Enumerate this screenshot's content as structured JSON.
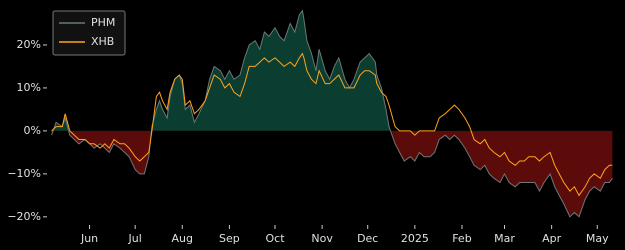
{
  "chart_data": {
    "type": "line",
    "x": [
      -25,
      -22,
      -18,
      -16,
      -13,
      -10,
      -7,
      -3,
      0,
      3,
      7,
      10,
      13,
      16,
      20,
      23,
      26,
      30,
      33,
      36,
      39,
      41,
      44,
      46,
      48,
      51,
      53,
      56,
      59,
      61,
      63,
      66,
      69,
      72,
      76,
      79,
      82,
      86,
      89,
      92,
      95,
      99,
      102,
      105,
      109,
      112,
      115,
      118,
      122,
      125,
      128,
      132,
      135,
      138,
      140,
      141,
      143,
      146,
      149,
      151,
      155,
      158,
      161,
      164,
      168,
      171,
      174,
      178,
      181,
      184,
      188,
      189,
      192,
      195,
      197,
      201,
      204,
      207,
      211,
      214,
      217,
      220,
      224,
      227,
      230,
      234,
      237,
      240,
      243,
      247,
      250,
      253,
      257,
      260,
      263,
      266,
      270,
      273,
      276,
      280,
      283,
      286,
      289,
      293,
      296,
      299,
      303,
      306,
      309,
      312,
      316,
      319,
      322,
      326,
      329,
      332,
      336,
      339,
      342,
      344
    ],
    "series": [
      {
        "name": "PHM",
        "color": "#6b7878",
        "fill_positive": "#0b3d31",
        "fill_negative": "#5c0b0b",
        "values": [
          -1,
          2,
          1,
          3,
          -1,
          -2,
          -3,
          -2,
          -3,
          -4,
          -3,
          -4,
          -5,
          -3,
          -4,
          -5,
          -6,
          -9,
          -10,
          -10,
          -6,
          1,
          5,
          7,
          5,
          3,
          8,
          12,
          13,
          11,
          5,
          6,
          2,
          4,
          7,
          12,
          15,
          14,
          12,
          14,
          12,
          13,
          17,
          20,
          21,
          19,
          23,
          22,
          24,
          22,
          21,
          25,
          23,
          27,
          28,
          26,
          21,
          18,
          14,
          19,
          14,
          12,
          15,
          17,
          12,
          10,
          12,
          16,
          17,
          18,
          16,
          13,
          10,
          5,
          1,
          -3,
          -5,
          -7,
          -6,
          -7,
          -5,
          -6,
          -6,
          -5,
          -2,
          -1,
          -2,
          -1,
          -2,
          -4,
          -6,
          -8,
          -9,
          -8,
          -10,
          -11,
          -12,
          -10,
          -12,
          -13,
          -12,
          -12,
          -12,
          -12,
          -14,
          -12,
          -10,
          -13,
          -15,
          -17,
          -20,
          -19,
          -20,
          -16,
          -14,
          -13,
          -14,
          -12,
          -12,
          -11
        ]
      },
      {
        "name": "XHB",
        "color": "#ffa41c",
        "values": [
          0,
          1,
          1,
          4,
          0,
          -1,
          -2,
          -2,
          -3,
          -3,
          -4,
          -3,
          -4,
          -2,
          -3,
          -3,
          -4,
          -6,
          -7,
          -6,
          -5,
          0,
          8,
          9,
          7,
          5,
          9,
          12,
          13,
          12,
          6,
          7,
          4,
          5,
          7,
          10,
          13,
          12,
          10,
          11,
          9,
          8,
          11,
          15,
          15,
          16,
          17,
          16,
          17,
          16,
          15,
          16,
          15,
          17,
          18,
          17,
          14,
          12,
          11,
          14,
          11,
          11,
          12,
          13,
          10,
          10,
          10,
          13,
          14,
          14,
          13,
          11,
          9,
          8,
          6,
          1,
          0,
          0,
          0,
          -1,
          0,
          0,
          0,
          0,
          3,
          4,
          5,
          6,
          5,
          3,
          1,
          -2,
          -3,
          -2,
          -4,
          -5,
          -6,
          -5,
          -7,
          -8,
          -7,
          -7,
          -6,
          -6,
          -7,
          -6,
          -5,
          -8,
          -10,
          -12,
          -14,
          -13,
          -15,
          -13,
          -11,
          -10,
          -11,
          -9,
          -8,
          -8
        ]
      }
    ],
    "xlim": [
      -28,
      347
    ],
    "xticks": [
      {
        "value": 0,
        "label": "Jun"
      },
      {
        "value": 30,
        "label": "Jul"
      },
      {
        "value": 61,
        "label": "Aug"
      },
      {
        "value": 92,
        "label": "Sep"
      },
      {
        "value": 122,
        "label": "Oct"
      },
      {
        "value": 153,
        "label": "Nov"
      },
      {
        "value": 183,
        "label": "Dec"
      },
      {
        "value": 214,
        "label": "2025"
      },
      {
        "value": 245,
        "label": "Feb"
      },
      {
        "value": 273,
        "label": "Mar"
      },
      {
        "value": 304,
        "label": "Apr"
      },
      {
        "value": 334,
        "label": "May"
      }
    ],
    "ylim": [
      -21.9,
      29.3
    ],
    "yticks": [
      {
        "value": 20,
        "label": "20%"
      },
      {
        "value": 10,
        "label": "10%"
      },
      {
        "value": 0,
        "label": "0%"
      },
      {
        "value": -10,
        "label": "−10%"
      },
      {
        "value": -20,
        "label": "−20%"
      }
    ],
    "legend": "upper left"
  }
}
